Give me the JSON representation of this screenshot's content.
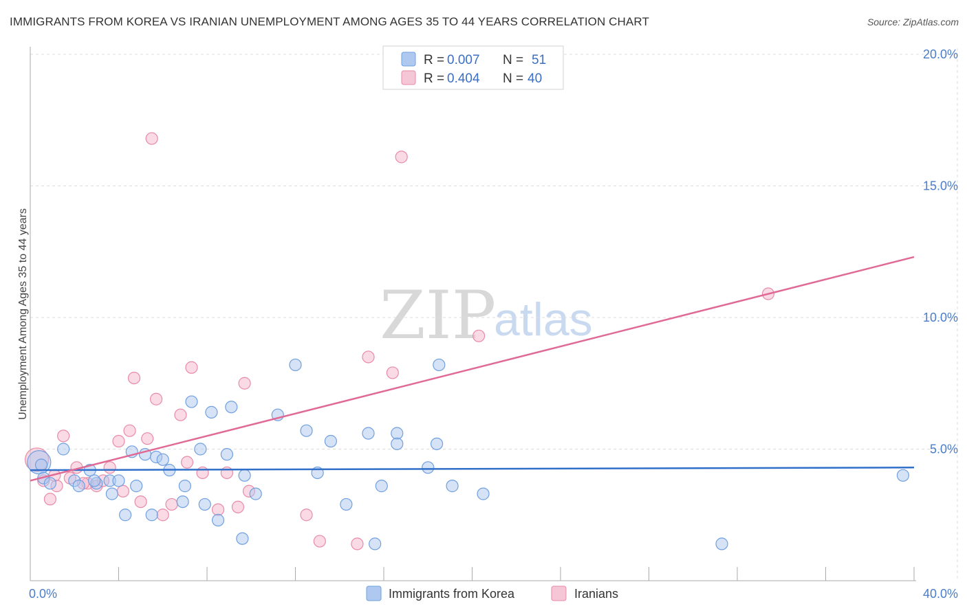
{
  "title": "IMMIGRANTS FROM KOREA VS IRANIAN UNEMPLOYMENT AMONG AGES 35 TO 44 YEARS CORRELATION CHART",
  "source": "Source: ZipAtlas.com",
  "watermark": {
    "zip": "ZIP",
    "atlas": "atlas"
  },
  "colors": {
    "korea_fill": "#aec8ef",
    "korea_stroke": "#6f9fe0",
    "korea_line": "#2f6fc9",
    "iran_fill": "#f5b8cb",
    "iran_stroke": "#e88aa8",
    "iran_line": "#e06a95",
    "axis_text": "#4a7cc9",
    "grid": "#dddddd"
  },
  "legend": {
    "rows": [
      {
        "r_label": "R = ",
        "r_value": "0.007",
        "n_label": "N = ",
        "n_value": "51"
      },
      {
        "r_label": "R = ",
        "r_value": "0.404",
        "n_label": "N = ",
        "n_value": "40"
      }
    ]
  },
  "bottom_legend": [
    {
      "label": "Immigrants from Korea"
    },
    {
      "label": "Iranians"
    }
  ],
  "chart_data": {
    "type": "scatter",
    "title": "IMMIGRANTS FROM KOREA VS IRANIAN UNEMPLOYMENT AMONG AGES 35 TO 44 YEARS CORRELATION CHART",
    "xlabel": "",
    "ylabel": "Unemployment Among Ages 35 to 44 years",
    "xlim": [
      0,
      40
    ],
    "ylim": [
      0,
      20
    ],
    "x_tick_labels": [
      "0.0%",
      "40.0%"
    ],
    "y_ticks": [
      5,
      10,
      15,
      20
    ],
    "y_tick_labels": [
      "5.0%",
      "10.0%",
      "15.0%",
      "20.0%"
    ],
    "series": [
      {
        "name": "Immigrants from Korea",
        "r": 0.007,
        "n": 51,
        "trend": {
          "x": [
            0,
            40
          ],
          "y": [
            4.2,
            4.3
          ]
        },
        "points": [
          {
            "x": 0.4,
            "y": 4.5,
            "big": true
          },
          {
            "x": 0.6,
            "y": 3.9
          },
          {
            "x": 0.9,
            "y": 3.7
          },
          {
            "x": 1.5,
            "y": 5.0
          },
          {
            "x": 2.0,
            "y": 3.8
          },
          {
            "x": 2.2,
            "y": 3.6
          },
          {
            "x": 2.7,
            "y": 4.2
          },
          {
            "x": 3.0,
            "y": 3.7
          },
          {
            "x": 3.6,
            "y": 3.8
          },
          {
            "x": 3.7,
            "y": 3.3
          },
          {
            "x": 4.0,
            "y": 3.8
          },
          {
            "x": 4.3,
            "y": 2.5
          },
          {
            "x": 4.6,
            "y": 4.9
          },
          {
            "x": 4.8,
            "y": 3.6
          },
          {
            "x": 5.2,
            "y": 4.8
          },
          {
            "x": 5.5,
            "y": 2.5
          },
          {
            "x": 5.7,
            "y": 4.7
          },
          {
            "x": 6.0,
            "y": 4.6
          },
          {
            "x": 6.3,
            "y": 4.2
          },
          {
            "x": 6.9,
            "y": 3.0
          },
          {
            "x": 7.0,
            "y": 3.6
          },
          {
            "x": 7.3,
            "y": 6.8
          },
          {
            "x": 7.7,
            "y": 5.0
          },
          {
            "x": 7.9,
            "y": 2.9
          },
          {
            "x": 8.2,
            "y": 6.4
          },
          {
            "x": 8.5,
            "y": 2.3
          },
          {
            "x": 8.9,
            "y": 4.8
          },
          {
            "x": 9.1,
            "y": 6.6
          },
          {
            "x": 9.7,
            "y": 4.0
          },
          {
            "x": 9.6,
            "y": 1.6
          },
          {
            "x": 10.2,
            "y": 3.3
          },
          {
            "x": 11.2,
            "y": 6.3
          },
          {
            "x": 12.0,
            "y": 8.2
          },
          {
            "x": 12.5,
            "y": 5.7
          },
          {
            "x": 13.0,
            "y": 4.1
          },
          {
            "x": 13.6,
            "y": 5.3
          },
          {
            "x": 14.3,
            "y": 2.9
          },
          {
            "x": 15.3,
            "y": 5.6
          },
          {
            "x": 15.6,
            "y": 1.4
          },
          {
            "x": 15.9,
            "y": 3.6
          },
          {
            "x": 16.6,
            "y": 5.6
          },
          {
            "x": 16.6,
            "y": 5.2
          },
          {
            "x": 18.0,
            "y": 4.3
          },
          {
            "x": 18.4,
            "y": 5.2
          },
          {
            "x": 18.5,
            "y": 8.2
          },
          {
            "x": 19.1,
            "y": 3.6
          },
          {
            "x": 20.5,
            "y": 3.3
          },
          {
            "x": 31.3,
            "y": 1.4
          },
          {
            "x": 39.5,
            "y": 4.0
          },
          {
            "x": 0.5,
            "y": 4.4
          },
          {
            "x": 2.9,
            "y": 3.8
          }
        ]
      },
      {
        "name": "Iranians",
        "r": 0.404,
        "n": 40,
        "trend": {
          "x": [
            0,
            40
          ],
          "y": [
            3.8,
            12.3
          ]
        },
        "points": [
          {
            "x": 0.3,
            "y": 4.6,
            "big": true
          },
          {
            "x": 0.6,
            "y": 3.8
          },
          {
            "x": 0.9,
            "y": 3.1
          },
          {
            "x": 1.2,
            "y": 3.6
          },
          {
            "x": 1.5,
            "y": 5.5
          },
          {
            "x": 1.8,
            "y": 3.9
          },
          {
            "x": 2.1,
            "y": 4.3
          },
          {
            "x": 2.6,
            "y": 3.7
          },
          {
            "x": 3.0,
            "y": 3.6
          },
          {
            "x": 3.3,
            "y": 3.8
          },
          {
            "x": 3.6,
            "y": 4.3
          },
          {
            "x": 4.0,
            "y": 5.3
          },
          {
            "x": 4.2,
            "y": 3.4
          },
          {
            "x": 4.5,
            "y": 5.7
          },
          {
            "x": 4.7,
            "y": 7.7
          },
          {
            "x": 5.0,
            "y": 3.0
          },
          {
            "x": 5.3,
            "y": 5.4
          },
          {
            "x": 5.5,
            "y": 16.8
          },
          {
            "x": 5.7,
            "y": 6.9
          },
          {
            "x": 6.0,
            "y": 2.5
          },
          {
            "x": 6.4,
            "y": 2.9
          },
          {
            "x": 6.8,
            "y": 6.3
          },
          {
            "x": 7.1,
            "y": 4.5
          },
          {
            "x": 7.3,
            "y": 8.1
          },
          {
            "x": 7.8,
            "y": 4.1
          },
          {
            "x": 8.5,
            "y": 2.7
          },
          {
            "x": 8.9,
            "y": 4.1
          },
          {
            "x": 9.4,
            "y": 2.8
          },
          {
            "x": 9.7,
            "y": 7.5
          },
          {
            "x": 9.9,
            "y": 3.4
          },
          {
            "x": 12.5,
            "y": 2.5
          },
          {
            "x": 13.1,
            "y": 1.5
          },
          {
            "x": 14.8,
            "y": 1.4
          },
          {
            "x": 15.3,
            "y": 8.5
          },
          {
            "x": 16.4,
            "y": 7.9
          },
          {
            "x": 16.8,
            "y": 16.1
          },
          {
            "x": 20.3,
            "y": 9.3
          },
          {
            "x": 33.4,
            "y": 10.9
          },
          {
            "x": 2.4,
            "y": 3.7
          },
          {
            "x": 1.1,
            "y": 4.0
          }
        ]
      }
    ]
  }
}
